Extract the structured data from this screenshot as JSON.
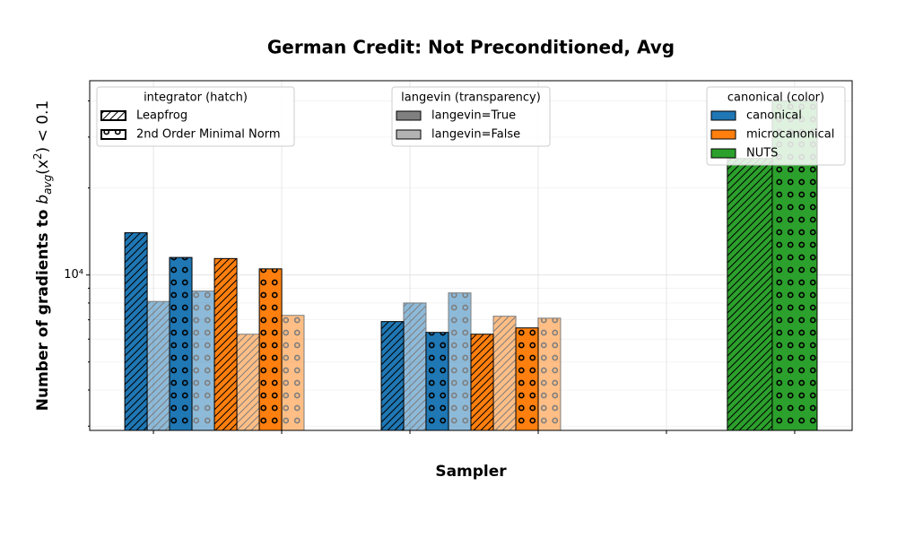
{
  "chart_data": {
    "type": "bar",
    "title": "German Credit: Not Preconditioned, Avg",
    "xlabel": "Sampler",
    "ylabel": [
      "Number of gradients to ",
      "b",
      "avg",
      "(x",
      "2",
      ") < 0.1"
    ],
    "log_y": true,
    "grid": true,
    "ylim": [
      2900,
      47000
    ],
    "yticks": [
      {
        "value": 10000,
        "label": "10⁴"
      }
    ],
    "minor_yticks": [
      3000,
      4000,
      5000,
      6000,
      7000,
      8000,
      9000,
      20000,
      30000,
      40000
    ],
    "xlim": [
      -0.497,
      5.448
    ],
    "xticks": [
      0,
      1,
      2,
      3,
      4,
      5
    ],
    "bars": [
      {
        "x": -0.136,
        "width": 0.175,
        "value": 14000,
        "color": "#1f77b4",
        "hatch": "//",
        "alpha": 1
      },
      {
        "x": 0.038,
        "width": 0.175,
        "value": 8100,
        "color": "#1f77b4",
        "hatch": "//",
        "alpha": 0.5
      },
      {
        "x": 0.213,
        "width": 0.175,
        "value": 11500,
        "color": "#1f77b4",
        "hatch": "o",
        "alpha": 1
      },
      {
        "x": 0.388,
        "width": 0.175,
        "value": 8800,
        "color": "#1f77b4",
        "hatch": "o",
        "alpha": 0.5
      },
      {
        "x": 0.563,
        "width": 0.175,
        "value": 11400,
        "color": "#ff7f0e",
        "hatch": "//",
        "alpha": 1
      },
      {
        "x": 0.738,
        "width": 0.175,
        "value": 6240,
        "color": "#ff7f0e",
        "hatch": "//",
        "alpha": 0.5
      },
      {
        "x": 0.913,
        "width": 0.175,
        "value": 10500,
        "color": "#ff7f0e",
        "hatch": "o",
        "alpha": 1
      },
      {
        "x": 1.087,
        "width": 0.175,
        "value": 7250,
        "color": "#ff7f0e",
        "hatch": "o",
        "alpha": 0.5
      },
      {
        "x": 1.864,
        "width": 0.175,
        "value": 6900,
        "color": "#1f77b4",
        "hatch": "//",
        "alpha": 1
      },
      {
        "x": 2.038,
        "width": 0.175,
        "value": 8000,
        "color": "#1f77b4",
        "hatch": "//",
        "alpha": 0.5
      },
      {
        "x": 2.213,
        "width": 0.175,
        "value": 6330,
        "color": "#1f77b4",
        "hatch": "o",
        "alpha": 1
      },
      {
        "x": 2.388,
        "width": 0.175,
        "value": 8670,
        "color": "#1f77b4",
        "hatch": "o",
        "alpha": 0.5
      },
      {
        "x": 2.563,
        "width": 0.175,
        "value": 6240,
        "color": "#ff7f0e",
        "hatch": "//",
        "alpha": 1
      },
      {
        "x": 2.738,
        "width": 0.175,
        "value": 7200,
        "color": "#ff7f0e",
        "hatch": "//",
        "alpha": 0.5
      },
      {
        "x": 2.913,
        "width": 0.175,
        "value": 6560,
        "color": "#ff7f0e",
        "hatch": "o",
        "alpha": 1
      },
      {
        "x": 3.087,
        "width": 0.175,
        "value": 7090,
        "color": "#ff7f0e",
        "hatch": "o",
        "alpha": 0.5
      },
      {
        "x": 4.65,
        "width": 0.35,
        "value": 25300,
        "color": "#2ca02c",
        "hatch": "//",
        "alpha": 1
      },
      {
        "x": 5.0,
        "width": 0.35,
        "value": 40000,
        "color": "#2ca02c",
        "hatch": "o",
        "alpha": 1
      }
    ],
    "legends": [
      {
        "title": "integrator (hatch)",
        "loc": "upper left",
        "entries": [
          {
            "label": "Leapfrog",
            "hatch": "//",
            "color": "#ffffff"
          },
          {
            "label": "2nd Order Minimal Norm",
            "hatch": "o",
            "color": "#ffffff"
          }
        ]
      },
      {
        "title": "langevin (transparency)",
        "loc": "upper center",
        "entries": [
          {
            "label": "langevin=True",
            "color": "#808080"
          },
          {
            "label": "langevin=False",
            "color": "#b3b3b3"
          }
        ]
      },
      {
        "title": "canonical (color)",
        "loc": "upper right",
        "entries": [
          {
            "label": "canonical",
            "color": "#1f77b4"
          },
          {
            "label": "microcanonical",
            "color": "#ff7f0e"
          },
          {
            "label": "NUTS",
            "color": "#2ca02c"
          }
        ]
      }
    ]
  }
}
